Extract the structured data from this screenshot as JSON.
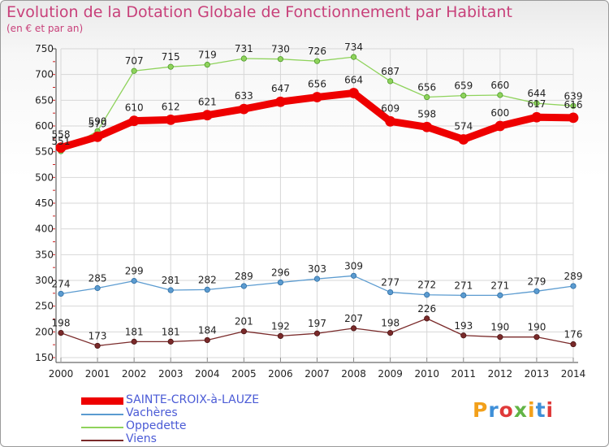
{
  "title": "Evolution de la Dotation Globale de Fonctionnement par Habitant",
  "subtitle": "(en € et par an)",
  "logo": "Proxiti",
  "chart_data": {
    "type": "line",
    "title": "Evolution de la Dotation Globale de Fonctionnement par Habitant",
    "subtitle": "(en € et par an)",
    "xlabel": "",
    "ylabel": "",
    "categories": [
      "2000",
      "2001",
      "2002",
      "2003",
      "2004",
      "2005",
      "2006",
      "2007",
      "2008",
      "2009",
      "2010",
      "2011",
      "2012",
      "2013",
      "2014"
    ],
    "y_ticks": [
      150,
      200,
      250,
      300,
      350,
      400,
      450,
      500,
      550,
      600,
      650,
      700,
      750
    ],
    "ylim": [
      150,
      750
    ],
    "grid": true,
    "legend_position": "bottom-left",
    "series": [
      {
        "name": "SAINTE-CROIX-à-LAUZE",
        "color": "#ee0000",
        "values": [
          558,
          579,
          610,
          612,
          621,
          633,
          647,
          656,
          664,
          609,
          598,
          574,
          600,
          617,
          616
        ],
        "labels": [
          "558",
          "579",
          "610",
          "612",
          "621",
          "633",
          "647",
          "656",
          "664",
          "609",
          "598",
          "574",
          "600",
          "617",
          "616"
        ]
      },
      {
        "name": "Vachères",
        "color": "#5b9bd0",
        "values": [
          274,
          285,
          299,
          281,
          282,
          289,
          296,
          303,
          309,
          277,
          272,
          271,
          271,
          279,
          289
        ],
        "labels": [
          "274",
          "285",
          "299",
          "281",
          "282",
          "289",
          "296",
          "303",
          "309",
          "277",
          "272",
          "271",
          "271",
          "279",
          "289"
        ]
      },
      {
        "name": "Oppedette",
        "color": "#8fd35c",
        "values": [
          551,
          590,
          707,
          715,
          719,
          731,
          730,
          726,
          734,
          687,
          656,
          659,
          660,
          644,
          639
        ],
        "labels": [
          "551",
          "590",
          "707",
          "715",
          "719",
          "731",
          "730",
          "726",
          "734",
          "687",
          "656",
          "659",
          "660",
          "644",
          "639"
        ]
      },
      {
        "name": "Viens",
        "color": "#7a2a2a",
        "values": [
          198,
          173,
          181,
          181,
          184,
          201,
          192,
          197,
          207,
          198,
          226,
          193,
          190,
          190,
          176
        ],
        "labels": [
          "198",
          "173",
          "181",
          "181",
          "184",
          "201",
          "192",
          "197",
          "207",
          "198",
          "226",
          "193",
          "190",
          "190",
          "176"
        ]
      }
    ]
  }
}
